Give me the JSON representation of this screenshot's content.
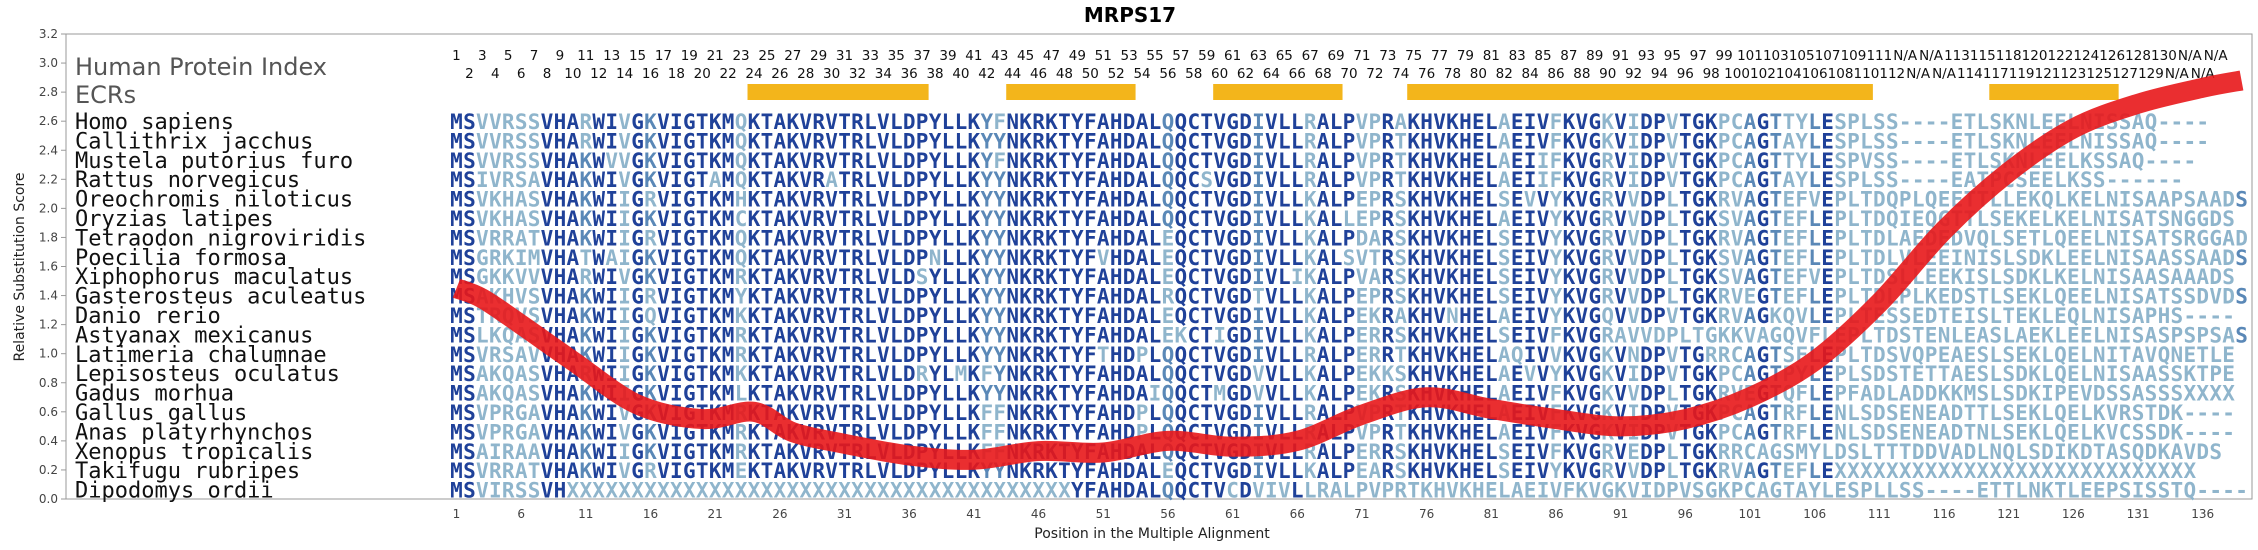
{
  "chart_data": {
    "type": "heatmap",
    "title": "MRPS17",
    "xlabel": "Position in the Multiple Alignment",
    "ylabel": "Relative Substitution Score",
    "ylim": [
      0.0,
      3.2
    ],
    "y_ticks": [
      "0.0",
      "0.2",
      "0.4",
      "0.6",
      "0.8",
      "1.0",
      "1.2",
      "1.4",
      "1.6",
      "1.8",
      "2.0",
      "2.2",
      "2.4",
      "2.6",
      "2.8",
      "3.0",
      "3.2"
    ],
    "x_ticks": [
      "1",
      "6",
      "11",
      "16",
      "21",
      "26",
      "31",
      "36",
      "41",
      "46",
      "51",
      "56",
      "61",
      "66",
      "71",
      "76",
      "81",
      "86",
      "91",
      "96",
      "101",
      "106",
      "111",
      "116",
      "121",
      "126",
      "131",
      "136"
    ],
    "alignment_length": 139,
    "human_protein_index_label": "Human Protein Index",
    "ecrs_label": "ECRs",
    "human_protein_index_top": [
      "1",
      "3",
      "5",
      "7",
      "9",
      "11",
      "13",
      "15",
      "17",
      "19",
      "21",
      "23",
      "25",
      "27",
      "29",
      "31",
      "33",
      "35",
      "37",
      "39",
      "41",
      "43",
      "45",
      "47",
      "49",
      "51",
      "53",
      "55",
      "57",
      "59",
      "61",
      "63",
      "65",
      "67",
      "69",
      "71",
      "73",
      "75",
      "77",
      "79",
      "81",
      "83",
      "85",
      "87",
      "89",
      "91",
      "93",
      "95",
      "97",
      "99",
      "101",
      "103",
      "105",
      "107",
      "109",
      "111",
      "N/A",
      "N/A",
      "113",
      "115",
      "118",
      "120",
      "122",
      "124",
      "126",
      "128",
      "130",
      "N/A",
      "N/A"
    ],
    "human_protein_index_bottom": [
      "2",
      "4",
      "6",
      "8",
      "10",
      "12",
      "14",
      "16",
      "18",
      "20",
      "22",
      "24",
      "26",
      "28",
      "30",
      "32",
      "34",
      "36",
      "38",
      "40",
      "42",
      "44",
      "46",
      "48",
      "50",
      "52",
      "54",
      "56",
      "58",
      "60",
      "62",
      "64",
      "66",
      "68",
      "70",
      "72",
      "74",
      "76",
      "78",
      "80",
      "82",
      "84",
      "86",
      "88",
      "90",
      "92",
      "94",
      "96",
      "98",
      "100",
      "102",
      "104",
      "106",
      "108",
      "110",
      "112",
      "N/A",
      "N/A",
      "114",
      "117",
      "119",
      "121",
      "123",
      "125",
      "127",
      "129",
      "N/A",
      "N/A"
    ],
    "ecr_regions": [
      [
        24,
        37
      ],
      [
        44,
        53
      ],
      [
        60,
        69
      ],
      [
        75,
        110
      ],
      [
        120,
        129
      ]
    ],
    "species": [
      "Homo sapiens",
      "Callithrix jacchus",
      "Mustela putorius furo",
      "Rattus norvegicus",
      "Oreochromis niloticus",
      "Oryzias latipes",
      "Tetraodon nigroviridis",
      "Poecilia formosa",
      "Xiphophorus maculatus",
      "Gasterosteus aculeatus",
      "Danio rerio",
      "Astyanax mexicanus",
      "Latimeria chalumnae",
      "Lepisosteus oculatus",
      "Gadus morhua",
      "Gallus gallus",
      "Anas platyrhynchos",
      "Xenopus tropicalis",
      "Takifugu rubripes",
      "Dipodomys ordii"
    ],
    "sequences": [
      "MSVVRSSVHARWIVGKVIGTKMQKTAKVRVTRLVLDPYLLKYFNKRKTYFAHDALQQCTVGDIVLLRALPVPRAKHVKHELAEIVFKVGKVIDPVTGKPCAGTTYLESPLSS----ETLSKNLEELNISSAQ----",
      "MSVVRSSVHARWIVGKVIGTKMQKTAKVRVTRLVLDPYLLKYYNKRKTYFAHDALQQCTVGDIVLLRALPVPRTKHVKHELAEIVFKVGKVIDPVTGKPCAGTAYLESPLSS----ETLSKNLEELNISSAQ----",
      "MSVVRSSVHAKWVVGKVIGTKMQKTAKVRVTRLVLDPYLLKYFNKRKTYFAHDALQQCTVGDIVLLRALPVPRTKHVKHELAEIIFKVGRVIDPVTGKPCAGTTYLESPVSS----ETLSKNLEELKSSAQ----",
      "MSIVRSAVHAKWIVGKVIGTAMQKTAKVRATRLVLDPYLLKYYNKRKTYFAHDALQQCSVGDIVLLRALPVPRTKHVKHELAEIIFKVGRVIDPVTGKPCAGTAYLESPLSS----EATPCSEELKSS------",
      "MSVKHASVHAKWIIGRVIGTKMHKTAKVRVTRLVLDPYLLKYYNKRKTYFAHDALQQCTVGDIVLLKALPEPRSKHVKHELSEVVYKVGRVVDPLTGKRVAGTEFVEPLTDQPLQEETTLLEKQLKELNISAAPSAADS",
      "MSVKHASVHAKWIIGKVIGTKMCKTAKVRVTRLVLDPYLLKYYNKRKTYFAHDALQQCTVGDIVLLKALLEPRSKHVKHELAEIVYKVGRVVDPLTGKSVAGTEFLEPLTDQIEQGTTLSEKELKELNISATSNGGDS",
      "MSVRRATVHAKWIIGRVIGTKMQKTAKVRVTRLVLDPYLLKYYNKRKTYFAHDALEQCTVGDIVLLKALPDARSKHVKHELSEIVYKVGRVVDPLTGKRVAGTEFLEPLTDLAEDEDVQLSETLQEELNISATSRGGADT",
      "MSGRKIMVHATWAIGKVIGTKMQKTAKVRVTRLVLDPNLLKYYNKRKTYFVHDALEQCTVGDIVLLKALSVTRSKHVKHELSEIVYKVGRVVDPLTGKSVAGTEFLEPLTDLVLEEINISLSDKLEELNISAASSAADS",
      "MSGKKVVVHARWIVGKVIGTKMRKTAKVRVTRLVLDSYLLKYYNKRKTYFAHDALEQCTVGDIVLIKALPVARSKHVKHELSEIVYKVGRVVDPLTGKSVAGTEFVEPLTDSLLEEKISLSDKLKELNISAASAAADS",
      "MSAKHVSVHAKWIIGRVIGTKMYKTAKVRVTRLVLDPYLLKYYNKRKTYFAHDALRQCTVGDTVLLKALPEPRSKHVKHELSEIVYKVGRVVDPLTGKRVEGTEFLEPLTDLPLKEDSTLSEKLQEELNISATSSDVDS",
      "MSTRQVSVHAKWIIGQVIGTKMKKTAKVRVTRLVLDPYLLKYYNKRKTYFAHDALEQCTVGDIVLLKALPEKRAKHVNHELAEIVYKVGQVVDPVTGKRVAGKQVLEPLTESSEDTEISLTEKLEQLNISAPHS----",
      "MSLKQASVHAKWIIGKVIGTKMRKTAKVRVTRLVLDPYLLKYYNKRKTYFAHDALEKCTIGDIVLLKALPERRSKHVKHELSEIVFKVGRAVVDPLTGKKVAGQVFLEPLTDSTENLEASLAEKLEELNISASPSPSAS",
      "MSVRSAVVHAKWIIGKVIGTKMRKTAKVRVTRLVLDPYLLKYYNKRKTYFTHDPLQQCTVGDIVLLRALPERRTKHVKHELAQIVVKVGKVNDPVTGRRCAGTSFLEPLTDSVQPEAESLSEKLQELNITAVQNETLE",
      "MSAKQASVHARWIIGKVIGTKMKKTAKVRVTRLVLDRYLMKFYNKRKTYFAHDALQQCTVGDVVLLKALPEKKSKHVKHELAEVVYKVGKVIDPVTGKPCAGTPYLEPLSDSTETTAESLSDKLQELNISAASSKTPE",
      "MSAKQASVHAKWIIGKVIGTKMLKTAKVRVTRLVLDPYLLKYYNKRKTYFAHDAIQQCTMGDVVLLKALPEKRSKHVKHELAEIVFKVGKVVDPLTGKRVEGTQFLEPFADLADDKKMSLSDKIPEVDSSASSSXXXX",
      "MSVPRGAVHAKWIVGKVIGTKMRKTAKVRVTRLVLDPYLLKFFNKRKTYFAHDPLQQCTVGDIVLLRALPVPRTKHVKHELAEIVFKVGKVIDPVTGKPCAGTRFLENLSDSENEADTTLSEKLQELKVRSTDK----",
      "MSVPRGAVHAKWIVGKVIGTKMRKTAKVRVTRLVLDPYLLKFFNKRKTYFAHDPLQQCTVGDIVLLRALPVPRTKHVKHELAEIVFKVGKVIDPVTGKPCAGTRFLENLSDSENEADTNLSEKLQELKVCSSDK----",
      "MSAIRAAVHAKWIIGKVIGTKMRKTAKVRVTRLVLDPYLLKFFNKRKTYFAHDALQQCTVGDIVLLRALPERRSKHVKHELSEIVFKVGRVEDPLTGKRRCAGSMYLDSLTTTDDVADLNQLSDIKDTASQDKAVDS",
      "MSVRRATVHAKWIVGRVIGTKMEKTAKVRVTRLVLDPYLLKYYNKRKTYFAHDALEQCTVGDIVLLKALPEARSKHVKHELSEIVYKVGRVVDPLTGKRVAGTEFLEXXXXXXXXXXXXXXXXXXXXXXXXXXXX",
      "MSVIRSSVHXXXXXXXXXXXXXXXXXXXXXXXXXXXXXXXXXXXXXXXYFAHDALQQCTVCDVIVLLRALPVPRTKHVKHELAEIVFKVGKVIDPVSGKPCAGTAYLESPLLSS----ETTLNKTLEEPSISSTQ----"
    ],
    "score_series": {
      "name": "",
      "x": [
        1,
        3,
        6,
        10,
        15,
        20,
        24,
        27,
        31,
        36,
        41,
        46,
        51,
        56,
        61,
        66,
        71,
        76,
        81,
        86,
        91,
        96,
        101,
        106,
        111,
        116,
        121,
        126,
        131,
        136,
        139
      ],
      "y": [
        1.45,
        1.38,
        1.2,
        0.95,
        0.65,
        0.55,
        0.6,
        0.46,
        0.38,
        0.3,
        0.27,
        0.33,
        0.32,
        0.4,
        0.36,
        0.4,
        0.58,
        0.7,
        0.62,
        0.55,
        0.5,
        0.55,
        0.7,
        0.95,
        1.35,
        1.85,
        2.25,
        2.55,
        2.72,
        2.83,
        2.88
      ]
    },
    "colors": {
      "ecr_bar": "#f3b51b",
      "score_line": "#e8171a",
      "conserved": "#1f4199",
      "semi_conserved": "#5a88b7",
      "variable": "#8fb5cc",
      "frame": "#9a9a9a"
    }
  }
}
